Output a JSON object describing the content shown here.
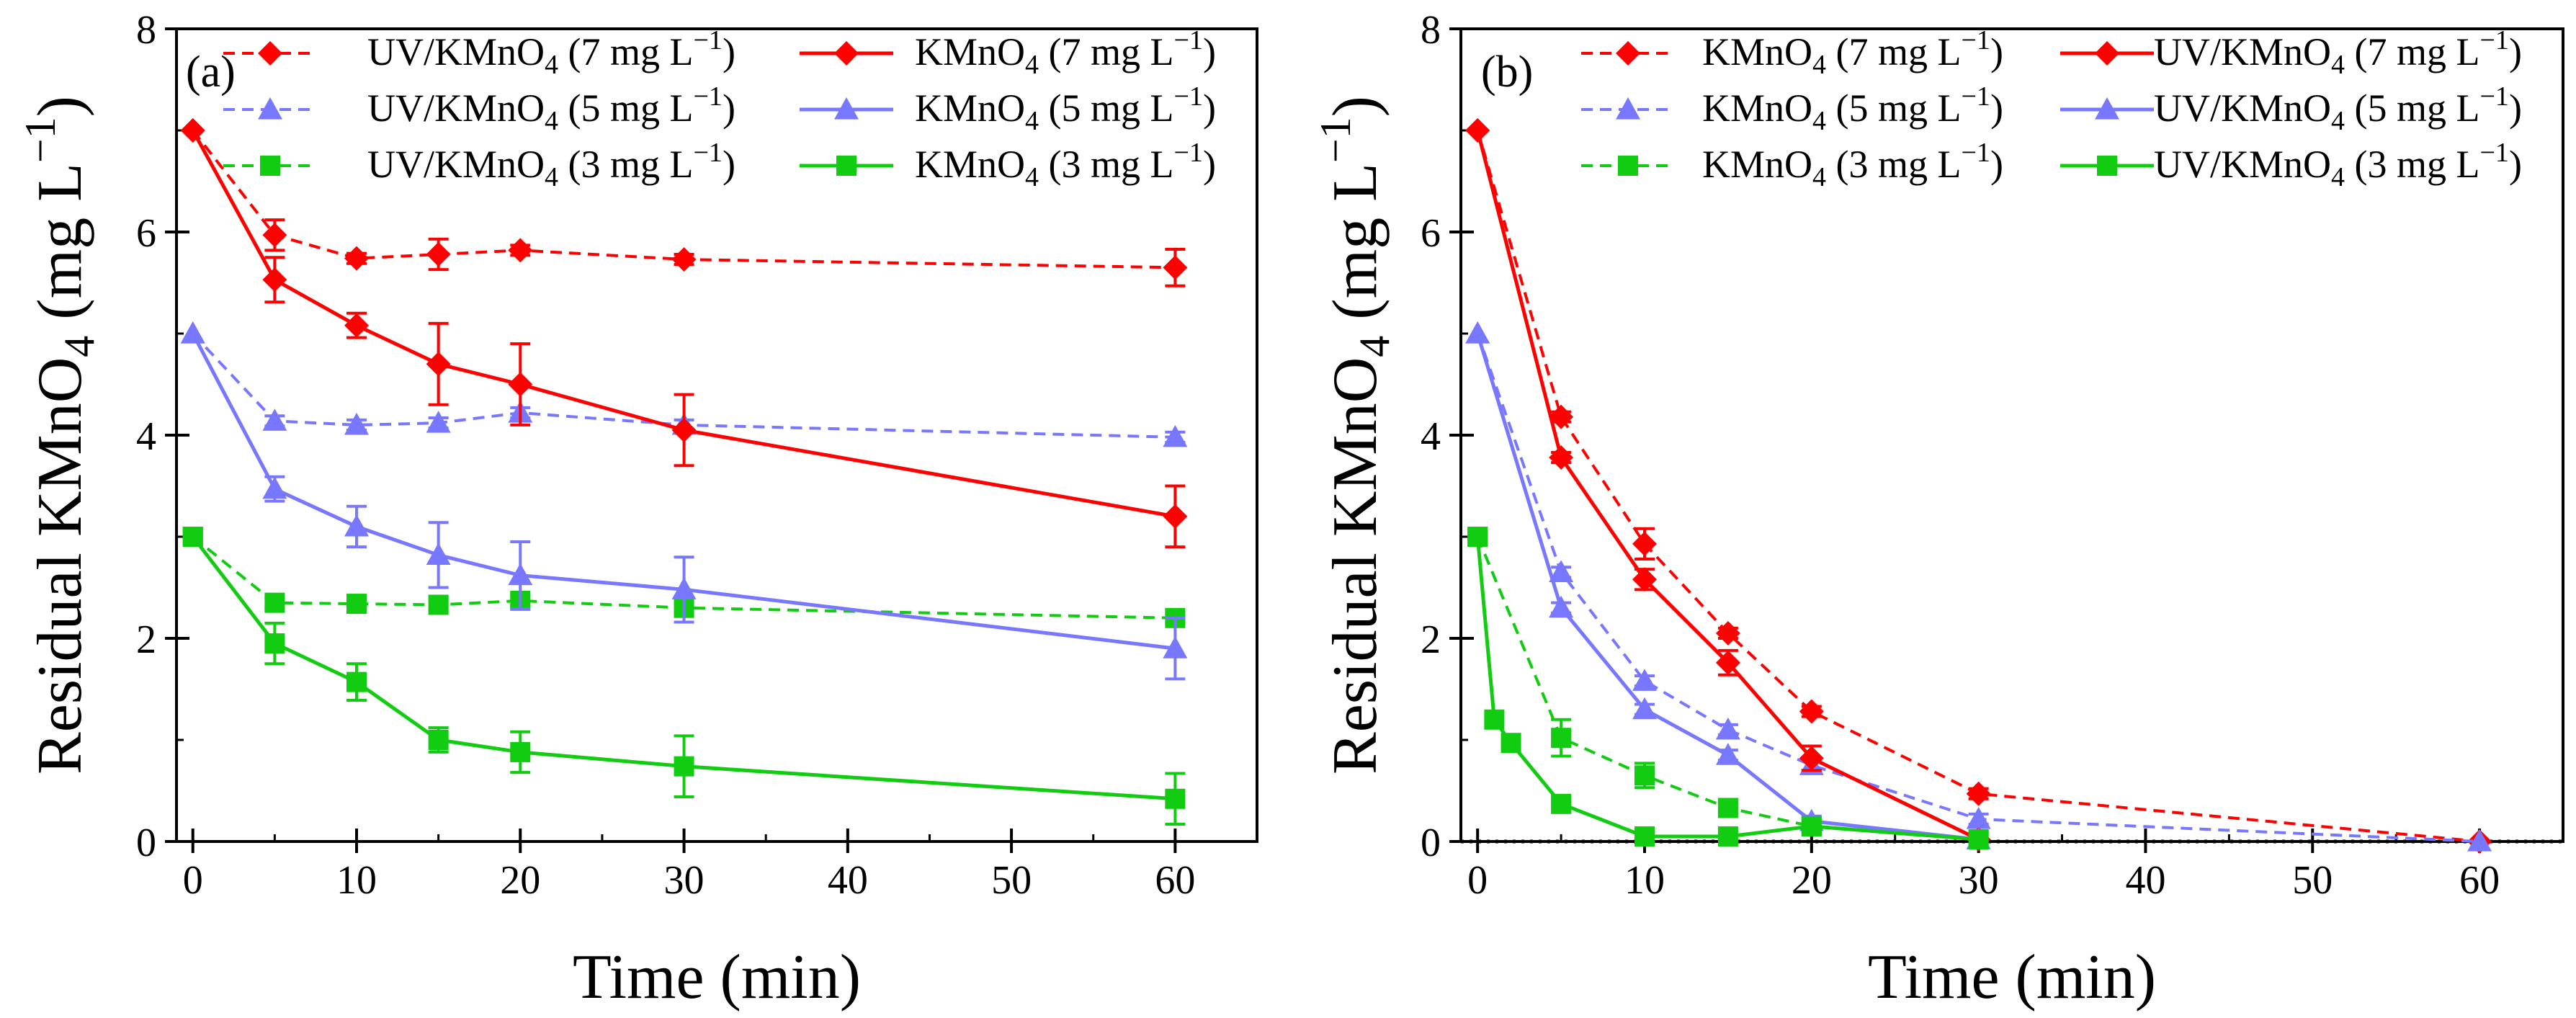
{
  "colors": {
    "red": "#ff0000",
    "blue": "#7777ff",
    "green": "#11cc11"
  },
  "chart_data": [
    {
      "id": "a",
      "type": "line",
      "panel_label": "(a)",
      "xlabel": "Time (min)",
      "ylabel_main": "Residual KMnO",
      "ylabel_sub": "4",
      "ylabel_unit": "(mg L",
      "ylabel_sup": "−1",
      "ylabel_close": ")",
      "xlim": [
        -1,
        65
      ],
      "ylim": [
        0,
        8
      ],
      "xticks": [
        0,
        10,
        20,
        30,
        40,
        50,
        60
      ],
      "yticks": [
        0,
        2,
        4,
        6,
        8
      ],
      "legend_position": "top",
      "series": [
        {
          "name": "UV/KMnO4 (7 mg L−1)",
          "label_pre": "UV/KMnO",
          "label_sub": "4",
          "label_mid": " (7 mg L",
          "label_sup": "−1",
          "label_post": ")",
          "color": "red",
          "marker": "diamond",
          "dash": true,
          "x": [
            0,
            5,
            10,
            15,
            20,
            30,
            60
          ],
          "y": [
            7.0,
            5.97,
            5.74,
            5.78,
            5.82,
            5.73,
            5.65
          ],
          "err": [
            0,
            0.15,
            0.05,
            0.15,
            0.05,
            0.05,
            0.18
          ]
        },
        {
          "name": "UV/KMnO4 (5 mg L−1)",
          "label_pre": "UV/KMnO",
          "label_sub": "4",
          "label_mid": " (5 mg L",
          "label_sup": "−1",
          "label_post": ")",
          "color": "blue",
          "marker": "triangle",
          "dash": true,
          "x": [
            0,
            5,
            10,
            15,
            20,
            30,
            60
          ],
          "y": [
            5.0,
            4.14,
            4.1,
            4.12,
            4.22,
            4.1,
            3.98
          ],
          "err": [
            0,
            0.05,
            0.05,
            0.05,
            0.05,
            0.05,
            0.05
          ]
        },
        {
          "name": "UV/KMnO4 (3 mg L−1)",
          "label_pre": "UV/KMnO",
          "label_sub": "4",
          "label_mid": " (3 mg L",
          "label_sup": "−1",
          "label_post": ")",
          "color": "green",
          "marker": "square",
          "dash": true,
          "x": [
            0,
            5,
            10,
            15,
            20,
            30,
            60
          ],
          "y": [
            3.0,
            2.35,
            2.34,
            2.33,
            2.37,
            2.3,
            2.2
          ],
          "err": [
            0,
            0.05,
            0.05,
            0.05,
            0.05,
            0.05,
            0.05
          ]
        },
        {
          "name": "KMnO4 (7 mg L−1)",
          "label_pre": "KMnO",
          "label_sub": "4",
          "label_mid": " (7 mg L",
          "label_sup": "−1",
          "label_post": ")",
          "color": "red",
          "marker": "diamond",
          "dash": false,
          "x": [
            0,
            5,
            10,
            15,
            20,
            30,
            60
          ],
          "y": [
            7.0,
            5.53,
            5.08,
            4.7,
            4.5,
            4.05,
            3.2
          ],
          "err": [
            0,
            0.22,
            0.12,
            0.4,
            0.4,
            0.35,
            0.3
          ]
        },
        {
          "name": "KMnO4 (5 mg L−1)",
          "label_pre": "KMnO",
          "label_sub": "4",
          "label_mid": " (5 mg L",
          "label_sup": "−1",
          "label_post": ")",
          "color": "blue",
          "marker": "triangle",
          "dash": false,
          "x": [
            0,
            5,
            10,
            15,
            20,
            30,
            60
          ],
          "y": [
            5.0,
            3.47,
            3.1,
            2.82,
            2.62,
            2.48,
            1.9
          ],
          "err": [
            0,
            0.12,
            0.2,
            0.32,
            0.33,
            0.32,
            0.3
          ]
        },
        {
          "name": "KMnO4 (3 mg L−1)",
          "label_pre": "KMnO",
          "label_sub": "4",
          "label_mid": " (3 mg L",
          "label_sup": "−1",
          "label_post": ")",
          "color": "green",
          "marker": "square",
          "dash": false,
          "x": [
            0,
            5,
            10,
            15,
            20,
            30,
            60
          ],
          "y": [
            3.0,
            1.95,
            1.57,
            1.0,
            0.88,
            0.74,
            0.42
          ],
          "err": [
            0,
            0.2,
            0.18,
            0.12,
            0.2,
            0.3,
            0.25
          ]
        }
      ]
    },
    {
      "id": "b",
      "type": "line",
      "panel_label": "(b)",
      "xlabel": "Time (min)",
      "ylabel_main": "Residual KMnO",
      "ylabel_sub": "4",
      "ylabel_unit": "(mg L",
      "ylabel_sup": "−1",
      "ylabel_close": ")",
      "xlim": [
        -1,
        65
      ],
      "ylim": [
        0,
        8
      ],
      "xticks": [
        0,
        10,
        20,
        30,
        40,
        50,
        60
      ],
      "yticks": [
        0,
        2,
        4,
        6,
        8
      ],
      "legend_position": "top",
      "series": [
        {
          "name": "KMnO4 (7 mg L−1)",
          "label_pre": "KMnO",
          "label_sub": "4",
          "label_mid": " (7 mg L",
          "label_sup": "−1",
          "label_post": ")",
          "color": "red",
          "marker": "diamond",
          "dash": true,
          "x": [
            0,
            5,
            10,
            15,
            20,
            30,
            60
          ],
          "y": [
            7.0,
            4.18,
            2.93,
            2.05,
            1.28,
            0.47,
            0.0
          ],
          "err": [
            0,
            0.05,
            0.15,
            0.05,
            0.05,
            0.05,
            0.0
          ]
        },
        {
          "name": "KMnO4 (5 mg L−1)",
          "label_pre": "KMnO",
          "label_sub": "4",
          "label_mid": " (5 mg L",
          "label_sup": "−1",
          "label_post": ")",
          "color": "blue",
          "marker": "triangle",
          "dash": true,
          "x": [
            0,
            5,
            10,
            15,
            20,
            30,
            60
          ],
          "y": [
            5.0,
            2.65,
            1.58,
            1.1,
            0.75,
            0.22,
            0.0
          ],
          "err": [
            0,
            0.05,
            0.05,
            0.05,
            0.05,
            0.05,
            0.0
          ]
        },
        {
          "name": "KMnO4 (3 mg L−1)",
          "label_pre": "KMnO",
          "label_sub": "4",
          "label_mid": " (3 mg L",
          "label_sup": "−1",
          "label_post": ")",
          "color": "green",
          "marker": "square",
          "dash": true,
          "x": [
            0,
            5,
            10,
            15,
            20,
            30
          ],
          "y": [
            3.0,
            1.02,
            0.65,
            0.33,
            0.15,
            0.02
          ],
          "err": [
            0,
            0.18,
            0.12,
            0.05,
            0.05,
            0.0
          ]
        },
        {
          "name": "UV/KMnO4 (7 mg L−1)",
          "label_pre": "UV/KMnO",
          "label_sub": "4",
          "label_mid": " (7 mg L",
          "label_sup": "−1",
          "label_post": ")",
          "color": "red",
          "marker": "diamond",
          "dash": false,
          "x": [
            0,
            5,
            10,
            15,
            20,
            30
          ],
          "y": [
            7.0,
            3.78,
            2.58,
            1.76,
            0.82,
            0.02
          ],
          "err": [
            0,
            0.05,
            0.1,
            0.12,
            0.12,
            0.0
          ]
        },
        {
          "name": "UV/KMnO4 (5 mg L−1)",
          "label_pre": "UV/KMnO",
          "label_sub": "4",
          "label_mid": " (5 mg L",
          "label_sup": "−1",
          "label_post": ")",
          "color": "blue",
          "marker": "triangle",
          "dash": false,
          "x": [
            0,
            5,
            10,
            15,
            20,
            30
          ],
          "y": [
            5.0,
            2.3,
            1.3,
            0.85,
            0.2,
            0.02
          ],
          "err": [
            0,
            0.05,
            0.05,
            0.05,
            0.05,
            0.0
          ]
        },
        {
          "name": "UV/KMnO4 (3 mg L−1)",
          "label_pre": "UV/KMnO",
          "label_sub": "4",
          "label_mid": " (3 mg L",
          "label_sup": "−1",
          "label_post": ")",
          "color": "green",
          "marker": "square",
          "dash": false,
          "x": [
            0,
            1,
            2,
            5,
            10,
            15,
            20,
            30
          ],
          "y": [
            3.0,
            1.2,
            0.97,
            0.37,
            0.05,
            0.05,
            0.15,
            0.02
          ],
          "err": [
            0,
            0.0,
            0.0,
            0.0,
            0.0,
            0.0,
            0.0,
            0.0
          ]
        }
      ]
    }
  ]
}
